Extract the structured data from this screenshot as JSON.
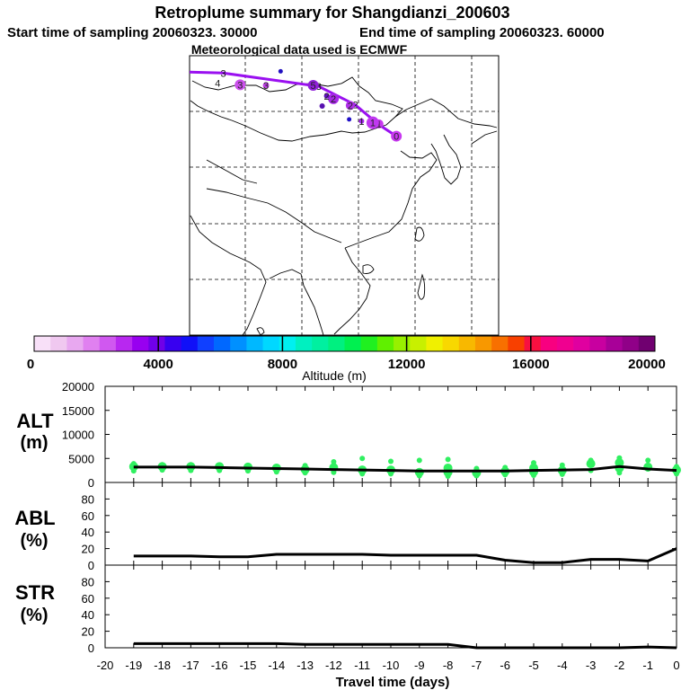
{
  "header": {
    "title": "Retroplume summary for Shangdianzi_200603",
    "start_label": "Start time of sampling 20060323. 30000",
    "end_label": "End time of sampling 20060323. 60000",
    "met_label": "Meteorological data used is ECMWF"
  },
  "colorbar": {
    "label": "Altitude  (m)",
    "min": 0,
    "max": 20000,
    "ticks": [
      0,
      4000,
      8000,
      12000,
      16000,
      20000
    ],
    "colors": [
      "#f8e0f8",
      "#f0c8f0",
      "#e8a8f0",
      "#e080f0",
      "#d058f0",
      "#b828f0",
      "#9800f0",
      "#7000e8",
      "#3800f0",
      "#1010f8",
      "#1040ff",
      "#0068ff",
      "#0090ff",
      "#00b8ff",
      "#00d8ff",
      "#00f0f0",
      "#00f0c0",
      "#00f0a0",
      "#00f080",
      "#00f050",
      "#20f020",
      "#60f000",
      "#98f000",
      "#c8f000",
      "#f0f000",
      "#f8d800",
      "#f8b800",
      "#f89800",
      "#f87000",
      "#f84000",
      "#f81040",
      "#f80080",
      "#f00090",
      "#e000a0",
      "#c800a0",
      "#a80098",
      "#900088",
      "#700070"
    ]
  },
  "map": {
    "track": [
      {
        "label": "0",
        "lon": 116.8,
        "lat": 40.6
      },
      {
        "label": "1",
        "lon": 113.5,
        "lat": 42.8
      },
      {
        "label": "2",
        "lon": 109.5,
        "lat": 46.2
      },
      {
        "label": "3",
        "lon": 103.0,
        "lat": 49.5
      },
      {
        "label": "3",
        "lon": 86.0,
        "lat": 51.9
      }
    ],
    "clusters": [
      {
        "label": "0",
        "lon": 116.8,
        "lat": 40.6,
        "size": 6,
        "color": "#c838f0"
      },
      {
        "label": "1",
        "lon": 113.7,
        "lat": 42.8,
        "size": 5,
        "color": "#c838f0"
      },
      {
        "label": "1",
        "lon": 112.6,
        "lat": 43.0,
        "size": 7,
        "color": "#c038f0"
      },
      {
        "label": "1",
        "lon": 110.6,
        "lat": 43.3,
        "size": 3,
        "color": "#a828f0"
      },
      {
        "label": "",
        "lon": 108.4,
        "lat": 43.6,
        "size": 2.5,
        "color": "#2010c8"
      },
      {
        "label": "2",
        "lon": 108.6,
        "lat": 46.1,
        "size": 5,
        "color": "#b030e8"
      },
      {
        "label": "2",
        "lon": 105.6,
        "lat": 47.3,
        "size": 6,
        "color": "#a828e8"
      },
      {
        "label": "2",
        "lon": 104.4,
        "lat": 47.8,
        "size": 3,
        "color": "#6010c0"
      },
      {
        "label": "",
        "lon": 103.6,
        "lat": 46.0,
        "size": 3,
        "color": "#5810b0"
      },
      {
        "label": "5",
        "lon": 102.0,
        "lat": 49.7,
        "size": 6,
        "color": "#9020d8"
      },
      {
        "label": "3",
        "lon": 93.6,
        "lat": 49.7,
        "size": 3.5,
        "color": "#c040e8"
      },
      {
        "label": "3",
        "lon": 89.0,
        "lat": 49.8,
        "size": 6,
        "color": "#cc50ec"
      },
      {
        "label": "",
        "lon": 96.2,
        "lat": 52.2,
        "size": 2.5,
        "color": "#2010c0"
      },
      {
        "label": "4",
        "lon": 85.0,
        "lat": 50.1,
        "size": 0,
        "color": "#c040e8"
      }
    ]
  },
  "x_axis": {
    "label": "Travel time (days)",
    "min": -20,
    "max": 0,
    "ticks": [
      -20,
      -19,
      -18,
      -17,
      -16,
      -15,
      -14,
      -13,
      -12,
      -11,
      -10,
      -9,
      -8,
      -7,
      -6,
      -5,
      -4,
      -3,
      -2,
      -1,
      0
    ]
  },
  "panels": {
    "alt": {
      "label_line1": "ALT",
      "label_line2": "(m)",
      "ymin": 0,
      "ymax": 20000,
      "ticks": [
        0,
        5000,
        10000,
        15000,
        20000
      ]
    },
    "abl": {
      "label_line1": "ABL",
      "label_line2": "(%)",
      "ymin": 0,
      "ymax": 100,
      "ticks": [
        0,
        20,
        40,
        60,
        80
      ]
    },
    "str": {
      "label_line1": "STR",
      "label_line2": "(%)",
      "ymin": 0,
      "ymax": 100,
      "ticks": [
        0,
        20,
        40,
        60,
        80
      ]
    }
  },
  "chart_data": {
    "type": "line",
    "title": "Retroplume summary for Shangdianzi_200603",
    "xlabel": "Travel time (days)",
    "x": [
      -19,
      -18,
      -17,
      -16,
      -15,
      -14,
      -13,
      -12,
      -11,
      -10,
      -9,
      -8,
      -7,
      -6,
      -5,
      -4,
      -3,
      -2,
      -1,
      0
    ],
    "series": [
      {
        "name": "ALT (m)",
        "values": [
          3200,
          3200,
          3200,
          3100,
          3000,
          2900,
          2800,
          2700,
          2600,
          2500,
          2400,
          2400,
          2400,
          2400,
          2500,
          2600,
          2700,
          3300,
          2800,
          2500
        ]
      },
      {
        "name": "ABL (%)",
        "values": [
          11,
          11,
          11,
          10,
          10,
          13,
          13,
          13,
          13,
          12,
          12,
          12,
          12,
          6,
          3,
          3,
          7,
          7,
          5,
          20
        ]
      },
      {
        "name": "STR (%)",
        "values": [
          5,
          5,
          5,
          5,
          5,
          5,
          4,
          4,
          4,
          4,
          4,
          4,
          0,
          0,
          0,
          0,
          0,
          0,
          1,
          0
        ]
      }
    ],
    "alt_clusters": [
      {
        "x": -19,
        "y": [
          2400,
          3300,
          3900
        ]
      },
      {
        "x": -18,
        "y": [
          2600,
          3300,
          3700
        ]
      },
      {
        "x": -17,
        "y": [
          2500,
          3300,
          3700
        ]
      },
      {
        "x": -16,
        "y": [
          2500,
          3300,
          3600
        ]
      },
      {
        "x": -15,
        "y": [
          2400,
          3200,
          3500
        ]
      },
      {
        "x": -14,
        "y": [
          2200,
          3000,
          3300
        ]
      },
      {
        "x": -13,
        "y": [
          2000,
          2700,
          3500
        ]
      },
      {
        "x": -12,
        "y": [
          2100,
          3100,
          4300
        ]
      },
      {
        "x": -11,
        "y": [
          1800,
          2600,
          5000
        ]
      },
      {
        "x": -10,
        "y": [
          1800,
          2600,
          4400
        ]
      },
      {
        "x": -9,
        "y": [
          1400,
          2100,
          4600
        ]
      },
      {
        "x": -8,
        "y": [
          1300,
          2100,
          3000,
          4800
        ]
      },
      {
        "x": -7,
        "y": [
          1400,
          2000,
          2900
        ]
      },
      {
        "x": -6,
        "y": [
          1600,
          2300,
          3100
        ]
      },
      {
        "x": -5,
        "y": [
          1500,
          2200,
          3000,
          4100
        ]
      },
      {
        "x": -4,
        "y": [
          1700,
          2500,
          3600
        ]
      },
      {
        "x": -3,
        "y": [
          2500,
          3900,
          4600
        ]
      },
      {
        "x": -2,
        "y": [
          2000,
          3000,
          4100,
          5100
        ]
      },
      {
        "x": -1,
        "y": [
          2800,
          3200,
          4600
        ]
      },
      {
        "x": 0,
        "y": [
          1800,
          2600,
          3300
        ]
      }
    ],
    "ylim_alt": [
      0,
      20000
    ],
    "ylim_abl": [
      0,
      100
    ],
    "ylim_str": [
      0,
      100
    ]
  }
}
